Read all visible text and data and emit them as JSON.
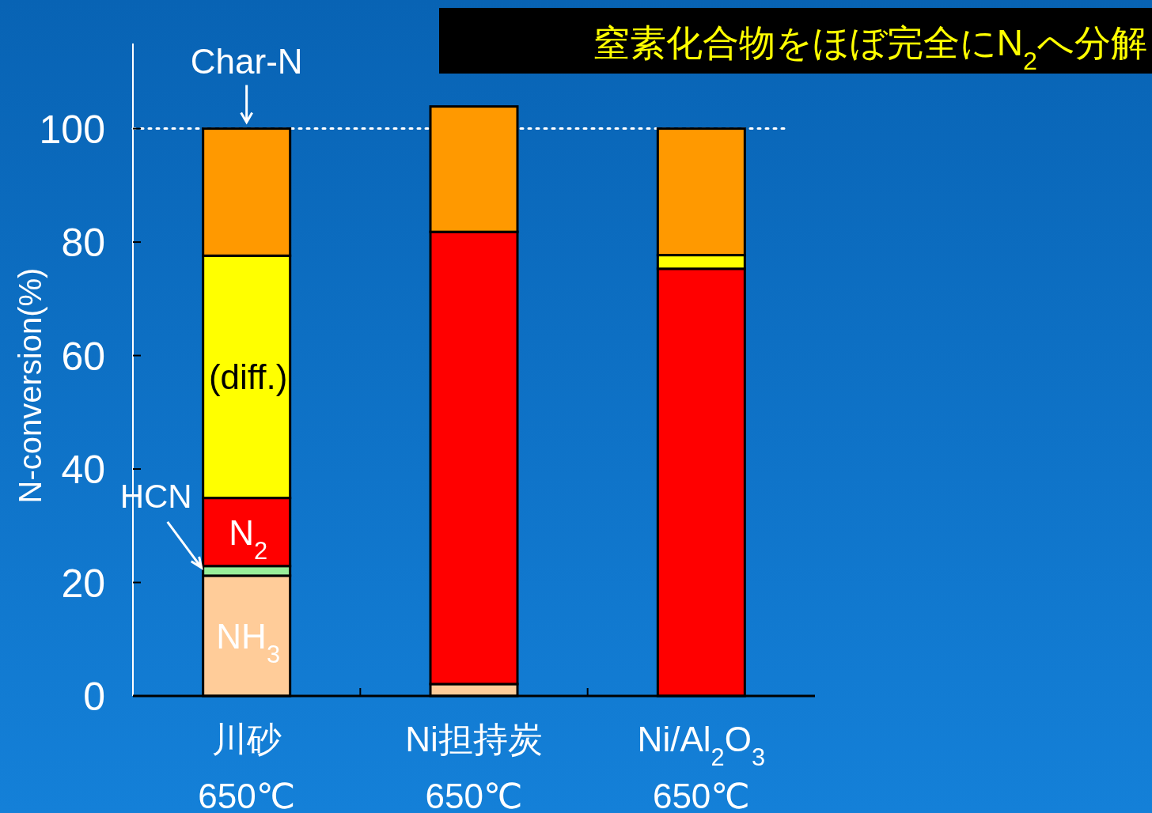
{
  "chart_data": {
    "type": "bar",
    "stacked": true,
    "title": "窒素化合物をほぼ完全にN$_{2}$へ分解",
    "ylabel": "N-conversion(%)",
    "categories": [
      "川砂\n650℃",
      "Ni担持炭\n650℃",
      "Ni/Al$_{2}$O$_{3}$\n650℃"
    ],
    "series": [
      {
        "name": "NH$_{3}$",
        "color": "#ffcc99",
        "values": [
          21.2,
          2.1,
          null
        ]
      },
      {
        "name": "HCN",
        "color": "#99ee99",
        "values": [
          1.7,
          0,
          0
        ]
      },
      {
        "name": "N$_{2}$",
        "color": "#ff0000",
        "values": [
          12,
          79.7,
          75.3
        ]
      },
      {
        "name": "(diff.)",
        "color": "#ffff00",
        "values": [
          42.7,
          0,
          2.4
        ]
      },
      {
        "name": "Char-N",
        "color": "#ff9900",
        "values": [
          22.4,
          22.1,
          22.3
        ]
      }
    ],
    "ylim": [
      0,
      115
    ],
    "yticks": [
      0,
      20,
      40,
      60,
      80,
      100
    ],
    "ref_lines": [
      {
        "axis": "y",
        "value": 100,
        "line_style": "dotted",
        "color": "#ffffff"
      }
    ]
  }
}
